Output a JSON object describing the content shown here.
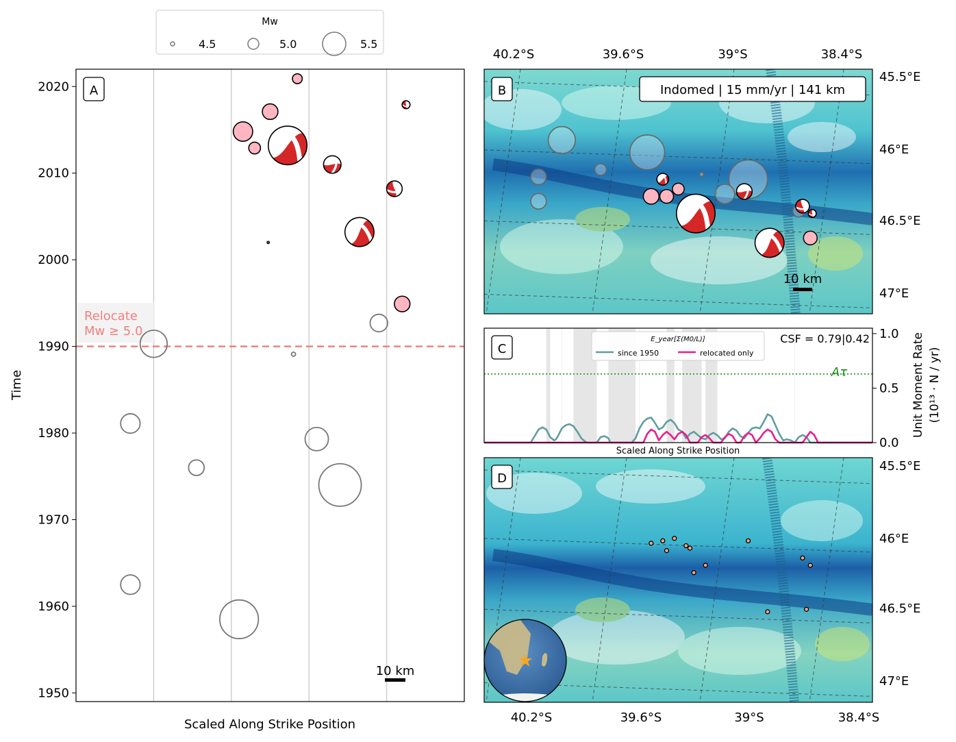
{
  "legend": {
    "title": "Mw",
    "items": [
      {
        "label": "4.5",
        "mw": 4.5
      },
      {
        "label": "5.0",
        "mw": 5.0
      },
      {
        "label": "5.5",
        "mw": 5.5
      }
    ]
  },
  "panel_a": {
    "letter": "A",
    "xlabel": "Scaled Along Strike Position",
    "ylabel": "Time",
    "relocate_label_1": "Relocate",
    "relocate_label_2": "Mw ≥ 5.0",
    "relocate_year": 1990,
    "scalebar_label": "10 km"
  },
  "panel_b": {
    "letter": "B",
    "info_box": "Indomed | 15 mm/yr | 141 km",
    "scalebar_label": "10 km",
    "top_ticks": [
      "40.2°S",
      "39.6°S",
      "39°S",
      "38.4°S"
    ],
    "right_ticks": [
      "45.5°E",
      "46°E",
      "46.5°E",
      "47°E"
    ]
  },
  "panel_c": {
    "letter": "C",
    "legend_title": "E_year[Σ(M0/L)]",
    "series_names": [
      "since 1950",
      "relocated only"
    ],
    "csf_label": "CSF = 0.79|0.42",
    "threshold_label": "Aτ",
    "xlabel": "Scaled Along Strike Position",
    "ylabel_1": "Unit Moment Rate",
    "ylabel_2": "(10¹³ · N / yr)",
    "y_ticks": [
      "0.0",
      "0.5",
      "1.0"
    ]
  },
  "panel_d": {
    "letter": "D",
    "bottom_ticks": [
      "40.2°S",
      "39.6°S",
      "39°S",
      "38.4°S"
    ],
    "right_ticks": [
      "45.5°E",
      "46°E",
      "46.5°E",
      "47°E"
    ]
  },
  "chart_data": [
    {
      "type": "scatter",
      "panel": "A",
      "xlabel": "Scaled Along Strike Position",
      "ylabel": "Time",
      "ylim": [
        1949,
        2022
      ],
      "y_ticks": [
        1950,
        1960,
        1970,
        1980,
        1990,
        2000,
        2010,
        2020
      ],
      "series": [
        {
          "name": "",
          "style": "historic-outline",
          "points": [
            {
              "x": 0.2,
              "y": 1990.3,
              "mw": 5.1
            },
            {
              "x": 0.14,
              "y": 1981.1,
              "mw": 4.9
            },
            {
              "x": 0.31,
              "y": 1976.0,
              "mw": 4.8
            },
            {
              "x": 0.14,
              "y": 1962.5,
              "mw": 4.9
            },
            {
              "x": 0.42,
              "y": 1958.5,
              "mw": 5.4
            },
            {
              "x": 0.56,
              "y": 1989.1,
              "mw": 4.5
            },
            {
              "x": 0.62,
              "y": 1979.3,
              "mw": 5.0
            },
            {
              "x": 0.68,
              "y": 1974.0,
              "mw": 5.5
            },
            {
              "x": 0.78,
              "y": 1992.7,
              "mw": 4.85
            }
          ]
        },
        {
          "name": "",
          "style": "pink-filled",
          "points": [
            {
              "x": 0.43,
              "y": 2014.8,
              "mw": 4.9
            },
            {
              "x": 0.5,
              "y": 2017.1,
              "mw": 4.8
            },
            {
              "x": 0.57,
              "y": 2020.9,
              "mw": 4.65
            },
            {
              "x": 0.84,
              "y": 1994.9,
              "mw": 4.8
            },
            {
              "x": 0.46,
              "y": 2012.9,
              "mw": 4.7
            }
          ]
        },
        {
          "name": "",
          "style": "focal-mechanism",
          "points": [
            {
              "x": 0.545,
              "y": 2013.2,
              "mw": 5.4,
              "rot": -40
            },
            {
              "x": 0.66,
              "y": 2011.0,
              "mw": 4.85,
              "rot": 0
            },
            {
              "x": 0.73,
              "y": 2003.2,
              "mw": 5.15,
              "rot": -55
            },
            {
              "x": 0.82,
              "y": 2008.2,
              "mw": 4.8,
              "rot": 80
            },
            {
              "x": 0.85,
              "y": 2017.9,
              "mw": 4.6,
              "rot": 90
            },
            {
              "x": 0.495,
              "y": 2002.0,
              "mw": 4.45,
              "rot": -35
            }
          ]
        }
      ]
    },
    {
      "type": "line",
      "panel": "C",
      "xlabel": "Scaled Along Strike Position",
      "ylabel": "Unit Moment Rate (10^13 · N / yr)",
      "ylim": [
        0,
        1.05
      ],
      "threshold": 0.63,
      "series": [
        {
          "name": "since 1950",
          "color": "#5f9ea0",
          "x": [
            0.0,
            0.12,
            0.13,
            0.14,
            0.15,
            0.16,
            0.17,
            0.18,
            0.185,
            0.19,
            0.2,
            0.21,
            0.22,
            0.23,
            0.24,
            0.25,
            0.26,
            0.265,
            0.29,
            0.3,
            0.31,
            0.32,
            0.325,
            0.38,
            0.39,
            0.4,
            0.41,
            0.42,
            0.43,
            0.44,
            0.45,
            0.46,
            0.47,
            0.48,
            0.49,
            0.5,
            0.51,
            0.52,
            0.53,
            0.54,
            0.55,
            0.56,
            0.57,
            0.58,
            0.59,
            0.6,
            0.61,
            0.62,
            0.63,
            0.64,
            0.65,
            0.66,
            0.67,
            0.68,
            0.69,
            0.7,
            0.71,
            0.72,
            0.73,
            0.74,
            0.75,
            0.76,
            0.77,
            0.78,
            0.79,
            0.8,
            0.81,
            0.82,
            0.83,
            0.84,
            0.85,
            0.86,
            0.87,
            0.88,
            0.89,
            0.9,
            1.0
          ],
          "y": [
            0,
            0,
            0.06,
            0.12,
            0.14,
            0.12,
            0.05,
            0.02,
            0.03,
            0.06,
            0.13,
            0.16,
            0.17,
            0.15,
            0.1,
            0.04,
            0.01,
            0,
            0,
            0.05,
            0.06,
            0.04,
            0,
            0,
            0.04,
            0.13,
            0.19,
            0.22,
            0.23,
            0.18,
            0.12,
            0.14,
            0.19,
            0.21,
            0.18,
            0.12,
            0.1,
            0.04,
            0.08,
            0.1,
            0.07,
            0.04,
            0.03,
            0.07,
            0.09,
            0.07,
            0.03,
            0.04,
            0.1,
            0.13,
            0.11,
            0.06,
            0.04,
            0.09,
            0.13,
            0.14,
            0.13,
            0.19,
            0.26,
            0.24,
            0.16,
            0.08,
            0.02,
            0.03,
            0.02,
            0,
            0.05,
            0.07,
            0.05,
            0,
            0,
            0,
            0,
            0,
            0,
            0,
            0
          ]
        },
        {
          "name": "relocated only",
          "color": "#e91e8c",
          "x": [
            0.0,
            0.41,
            0.42,
            0.43,
            0.44,
            0.45,
            0.46,
            0.47,
            0.48,
            0.49,
            0.5,
            0.51,
            0.52,
            0.53,
            0.54,
            0.55,
            0.56,
            0.57,
            0.58,
            0.59,
            0.6,
            0.61,
            0.62,
            0.63,
            0.64,
            0.65,
            0.66,
            0.67,
            0.68,
            0.69,
            0.7,
            0.71,
            0.72,
            0.73,
            0.74,
            0.75,
            0.76,
            0.77,
            0.78,
            0.79,
            0.8,
            0.81,
            0.82,
            0.83,
            0.84,
            0.85,
            0.86,
            0.87,
            1.0
          ],
          "y": [
            0,
            0,
            0.08,
            0.12,
            0.1,
            0.02,
            0.07,
            0.1,
            0.07,
            0.03,
            0.08,
            0.1,
            0.07,
            0,
            0,
            0,
            0.05,
            0.07,
            0.04,
            0,
            0,
            0,
            0.05,
            0.08,
            0.06,
            0,
            0,
            0.06,
            0.09,
            0.07,
            0,
            0.04,
            0.09,
            0.12,
            0.1,
            0.03,
            0,
            0,
            0,
            0,
            0,
            0,
            0,
            0.05,
            0.1,
            0.07,
            0,
            0,
            0
          ]
        }
      ],
      "shaded_x_ranges": [
        [
          0.16,
          0.17
        ],
        [
          0.23,
          0.29
        ],
        [
          0.32,
          0.39
        ],
        [
          0.47,
          0.49
        ],
        [
          0.51,
          0.56
        ],
        [
          0.57,
          0.6
        ]
      ]
    },
    {
      "type": "scatter",
      "panel": "D",
      "series": [
        {
          "name": "",
          "points": [
            {
              "x": 0.43,
              "y": 0.35
            },
            {
              "x": 0.46,
              "y": 0.34
            },
            {
              "x": 0.49,
              "y": 0.33
            },
            {
              "x": 0.47,
              "y": 0.38
            },
            {
              "x": 0.52,
              "y": 0.36
            },
            {
              "x": 0.53,
              "y": 0.37
            },
            {
              "x": 0.57,
              "y": 0.44
            },
            {
              "x": 0.54,
              "y": 0.47
            },
            {
              "x": 0.68,
              "y": 0.34
            },
            {
              "x": 0.82,
              "y": 0.41
            },
            {
              "x": 0.84,
              "y": 0.44
            },
            {
              "x": 0.73,
              "y": 0.63
            },
            {
              "x": 0.83,
              "y": 0.62
            }
          ]
        }
      ]
    }
  ]
}
